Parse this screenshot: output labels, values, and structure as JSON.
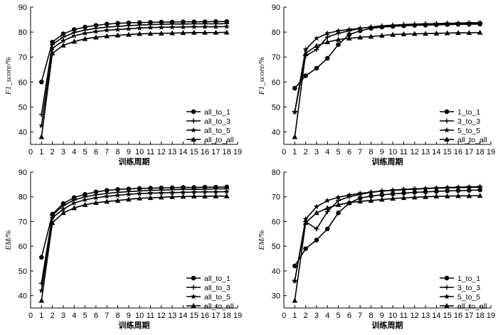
{
  "chart_data": [
    {
      "type": "line",
      "xlabel": "训练周期",
      "ylabel": "F1_score/%",
      "xlim": [
        0,
        19
      ],
      "ylim": [
        35,
        90
      ],
      "xticks": [
        0,
        1,
        2,
        3,
        4,
        5,
        6,
        7,
        8,
        9,
        10,
        11,
        12,
        13,
        14,
        15,
        16,
        17,
        18,
        19
      ],
      "yticks": [
        40,
        50,
        60,
        70,
        80,
        90
      ],
      "legend_position": "bottom-right",
      "x": [
        1,
        2,
        3,
        4,
        5,
        6,
        7,
        8,
        9,
        10,
        11,
        12,
        13,
        14,
        15,
        16,
        17,
        18
      ],
      "series": [
        {
          "name": "all_to_1",
          "marker": "circle",
          "values": [
            60.0,
            76.0,
            79.3,
            81.0,
            82.0,
            82.7,
            83.2,
            83.5,
            83.7,
            83.8,
            83.9,
            84.0,
            84.0,
            84.1,
            84.1,
            84.1,
            84.2,
            84.2
          ]
        },
        {
          "name": "all_to_3",
          "marker": "plus",
          "values": [
            47.0,
            75.0,
            78.0,
            79.8,
            80.8,
            81.5,
            82.0,
            82.3,
            82.6,
            82.8,
            83.0,
            83.1,
            83.2,
            83.2,
            83.3,
            83.3,
            83.3,
            83.4
          ]
        },
        {
          "name": "all_to_5",
          "marker": "star",
          "values": [
            42.5,
            73.5,
            76.5,
            78.5,
            79.5,
            80.2,
            80.7,
            81.0,
            81.3,
            81.6,
            81.8,
            81.9,
            82.0,
            82.0,
            82.1,
            82.1,
            82.1,
            82.2
          ]
        },
        {
          "name": "all_to_all",
          "marker": "triangle",
          "values": [
            38.0,
            71.5,
            74.7,
            76.2,
            77.3,
            77.9,
            78.4,
            78.7,
            79.0,
            79.3,
            79.4,
            79.5,
            79.6,
            79.7,
            79.8,
            79.8,
            79.8,
            79.9
          ]
        }
      ]
    },
    {
      "type": "line",
      "xlabel": "训练周期",
      "ylabel": "F1_score/%",
      "xlim": [
        0,
        19
      ],
      "ylim": [
        35,
        90
      ],
      "xticks": [
        0,
        1,
        2,
        3,
        4,
        5,
        6,
        7,
        8,
        9,
        10,
        11,
        12,
        13,
        14,
        15,
        16,
        17,
        18,
        19
      ],
      "yticks": [
        40,
        50,
        60,
        70,
        80,
        90
      ],
      "legend_position": "bottom-right",
      "x": [
        1,
        2,
        3,
        4,
        5,
        6,
        7,
        8,
        9,
        10,
        11,
        12,
        13,
        14,
        15,
        16,
        17,
        18
      ],
      "series": [
        {
          "name": "1_to_1",
          "marker": "circle",
          "values": [
            57.5,
            62.5,
            65.5,
            69.5,
            75.0,
            79.0,
            80.5,
            81.5,
            82.0,
            82.3,
            82.5,
            82.7,
            82.8,
            82.9,
            83.0,
            83.1,
            83.1,
            83.2
          ]
        },
        {
          "name": "3_to_3",
          "marker": "plus",
          "values": [
            48.0,
            70.5,
            73.0,
            78.0,
            79.5,
            80.5,
            81.5,
            82.0,
            82.5,
            82.8,
            83.0,
            83.2,
            83.3,
            83.4,
            83.5,
            83.5,
            83.6,
            83.6
          ]
        },
        {
          "name": "5_to_5",
          "marker": "star",
          "values": [
            48.0,
            73.0,
            77.5,
            79.5,
            80.5,
            81.0,
            81.5,
            82.0,
            82.3,
            82.6,
            82.8,
            83.0,
            83.2,
            83.3,
            83.5,
            83.6,
            83.7,
            83.8
          ]
        },
        {
          "name": "all_to_all",
          "marker": "triangle",
          "values": [
            38.0,
            71.5,
            74.5,
            76.0,
            77.0,
            77.5,
            77.9,
            78.2,
            78.6,
            79.0,
            79.2,
            79.3,
            79.4,
            79.5,
            79.6,
            79.7,
            79.7,
            79.8
          ]
        }
      ]
    },
    {
      "type": "line",
      "xlabel": "训练周期",
      "ylabel": "EM/%",
      "xlim": [
        0,
        19
      ],
      "ylim": [
        35,
        90
      ],
      "xticks": [
        0,
        1,
        2,
        3,
        4,
        5,
        6,
        7,
        8,
        9,
        10,
        11,
        12,
        13,
        14,
        15,
        16,
        17,
        18,
        19
      ],
      "yticks": [
        40,
        50,
        60,
        70,
        80,
        90
      ],
      "legend_position": "bottom-right",
      "x": [
        1,
        2,
        3,
        4,
        5,
        6,
        7,
        8,
        9,
        10,
        11,
        12,
        13,
        14,
        15,
        16,
        17,
        18
      ],
      "series": [
        {
          "name": "all_to_1",
          "marker": "circle",
          "values": [
            55.5,
            73.0,
            77.3,
            79.7,
            81.0,
            82.0,
            82.6,
            83.0,
            83.2,
            83.4,
            83.5,
            83.6,
            83.7,
            83.8,
            83.8,
            83.9,
            83.9,
            84.0
          ]
        },
        {
          "name": "all_to_3",
          "marker": "plus",
          "values": [
            45.0,
            72.5,
            76.5,
            78.7,
            80.0,
            80.8,
            81.4,
            81.8,
            82.1,
            82.4,
            82.6,
            82.7,
            82.9,
            83.0,
            83.0,
            83.1,
            83.2,
            83.2
          ]
        },
        {
          "name": "all_to_5",
          "marker": "star",
          "values": [
            42.0,
            71.5,
            75.0,
            77.5,
            78.8,
            79.6,
            80.2,
            80.6,
            81.0,
            81.3,
            81.5,
            81.6,
            81.7,
            81.8,
            81.9,
            82.0,
            82.0,
            82.1
          ]
        },
        {
          "name": "all_to_all",
          "marker": "triangle",
          "values": [
            38.0,
            69.5,
            73.5,
            75.5,
            76.8,
            77.6,
            78.1,
            78.5,
            79.0,
            79.4,
            79.6,
            79.8,
            80.0,
            80.1,
            80.2,
            80.2,
            80.3,
            80.3
          ]
        }
      ]
    },
    {
      "type": "line",
      "xlabel": "训练周期",
      "ylabel": "EM/%",
      "xlim": [
        0,
        19
      ],
      "ylim": [
        25,
        80
      ],
      "xticks": [
        0,
        1,
        2,
        3,
        4,
        5,
        6,
        7,
        8,
        9,
        10,
        11,
        12,
        13,
        14,
        15,
        16,
        17,
        18,
        19
      ],
      "yticks": [
        30,
        40,
        50,
        60,
        70,
        80
      ],
      "legend_position": "bottom-right",
      "x": [
        1,
        2,
        3,
        4,
        5,
        6,
        7,
        8,
        9,
        10,
        11,
        12,
        13,
        14,
        15,
        16,
        17,
        18
      ],
      "series": [
        {
          "name": "1_to_1",
          "marker": "circle",
          "values": [
            42.0,
            49.0,
            52.5,
            57.0,
            63.5,
            67.5,
            69.5,
            70.3,
            70.8,
            71.2,
            71.5,
            71.8,
            72.0,
            72.2,
            72.4,
            72.5,
            72.6,
            72.8
          ]
        },
        {
          "name": "3_to_3",
          "marker": "plus",
          "values": [
            36.0,
            60.0,
            57.0,
            64.0,
            68.5,
            70.0,
            71.0,
            71.8,
            72.3,
            72.6,
            72.9,
            73.1,
            73.3,
            73.5,
            73.6,
            73.7,
            73.8,
            73.9
          ]
        },
        {
          "name": "5_to_5",
          "marker": "star",
          "values": [
            36.0,
            61.0,
            66.0,
            68.5,
            69.8,
            70.7,
            71.4,
            71.9,
            72.4,
            72.7,
            73.0,
            73.2,
            73.4,
            73.6,
            73.8,
            73.9,
            74.0,
            74.1
          ]
        },
        {
          "name": "all_to_all",
          "marker": "triangle",
          "values": [
            28.0,
            59.5,
            63.5,
            65.5,
            66.8,
            67.6,
            68.2,
            68.5,
            68.9,
            69.3,
            69.6,
            69.8,
            70.0,
            70.2,
            70.3,
            70.4,
            70.4,
            70.5
          ]
        }
      ]
    }
  ]
}
